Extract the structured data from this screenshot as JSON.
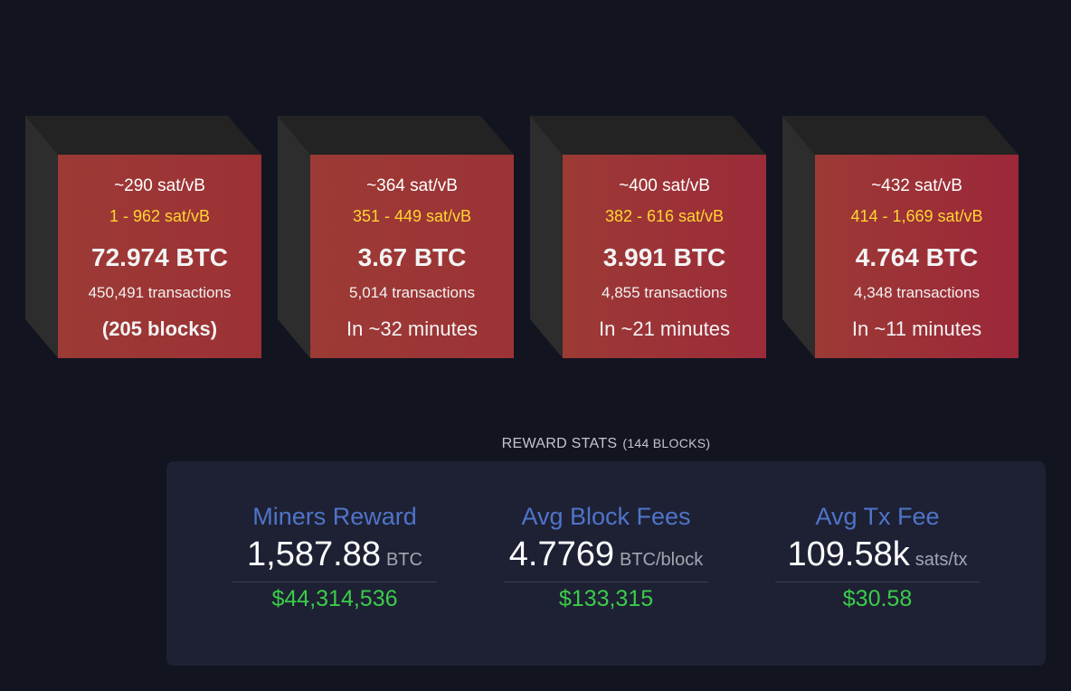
{
  "colors": {
    "background": "#121420",
    "block_front_start": "#9c3a35",
    "block_front_end": "#9c2739",
    "fee_range": "#ffd631",
    "stat_label": "#4f74c9",
    "fiat": "#3bcc49",
    "card": "#1e2134"
  },
  "blocks": [
    {
      "median_fee": "~290 sat/vB",
      "fee_range": "1 - 962 sat/vB",
      "size": "72.974 BTC",
      "transactions": "450,491 transactions",
      "eta": "(205 blocks)"
    },
    {
      "median_fee": "~364 sat/vB",
      "fee_range": "351 - 449 sat/vB",
      "size": "3.67 BTC",
      "transactions": "5,014 transactions",
      "eta": "In ~32 minutes"
    },
    {
      "median_fee": "~400 sat/vB",
      "fee_range": "382 - 616 sat/vB",
      "size": "3.991 BTC",
      "transactions": "4,855 transactions",
      "eta": "In ~21 minutes"
    },
    {
      "median_fee": "~432 sat/vB",
      "fee_range": "414 - 1,669 sat/vB",
      "size": "4.764 BTC",
      "transactions": "4,348 transactions",
      "eta": "In ~11 minutes"
    }
  ],
  "reward_stats": {
    "title": "REWARD STATS",
    "subtitle": "(144 BLOCKS)",
    "items": [
      {
        "label": "Miners Reward",
        "value": "1,587.88",
        "unit": "BTC",
        "fiat": "$44,314,536"
      },
      {
        "label": "Avg Block Fees",
        "value": "4.7769",
        "unit": "BTC/block",
        "fiat": "$133,315"
      },
      {
        "label": "Avg Tx Fee",
        "value": "109.58k",
        "unit": "sats/tx",
        "fiat": "$30.58"
      }
    ]
  }
}
